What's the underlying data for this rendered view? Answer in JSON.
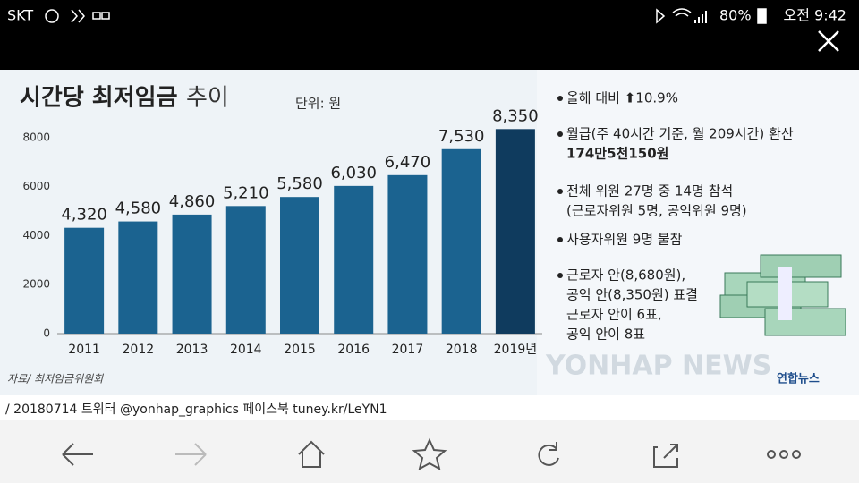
{
  "status_bar": {
    "carrier": "SKT",
    "battery": "80%",
    "time": "오전 9:42"
  },
  "chart_data": {
    "type": "bar",
    "title": "시간당 최저임금",
    "title_suffix": "추이",
    "unit": "단위: 원",
    "categories": [
      "2011",
      "2012",
      "2013",
      "2014",
      "2015",
      "2016",
      "2017",
      "2018",
      "2019년"
    ],
    "values": [
      4320,
      4580,
      4860,
      5210,
      5580,
      6030,
      6470,
      7530,
      8350
    ],
    "value_labels": [
      "4,320",
      "4,580",
      "4,860",
      "5,210",
      "5,580",
      "6,030",
      "6,470",
      "7,530",
      "8,350"
    ],
    "colors": [
      "#1b6390",
      "#1b6390",
      "#1b6390",
      "#1b6390",
      "#1b6390",
      "#1b6390",
      "#1b6390",
      "#1b6390",
      "#0f3b5e"
    ],
    "ylim": [
      0,
      8800
    ],
    "yticks": [
      0,
      2000,
      4000,
      6000,
      8000
    ],
    "grid": false
  },
  "notes": [
    [
      "올해 대비 ⬆10.9%"
    ],
    [
      "월급(주 40시간 기준, 월 209시간) 환산",
      "174만5천150원"
    ],
    [
      "전체 위원 27명 중 14명 참석",
      "(근로자위원 5명, 공익위원 9명)"
    ],
    [
      "사용자위원 9명 불참"
    ],
    [
      "근로자 안(8,680원),",
      "공익 안(8,350원) 표결",
      "근로자 안이 6표,",
      "공익 안이 8표"
    ]
  ],
  "source": "자료/ 최저임금위원회",
  "watermark": "YONHAP NEWS",
  "logo": "연합뉴스",
  "caption": "/ 20180714   트위터 @yonhap_graphics   페이스북 tuney.kr/LeYN1"
}
